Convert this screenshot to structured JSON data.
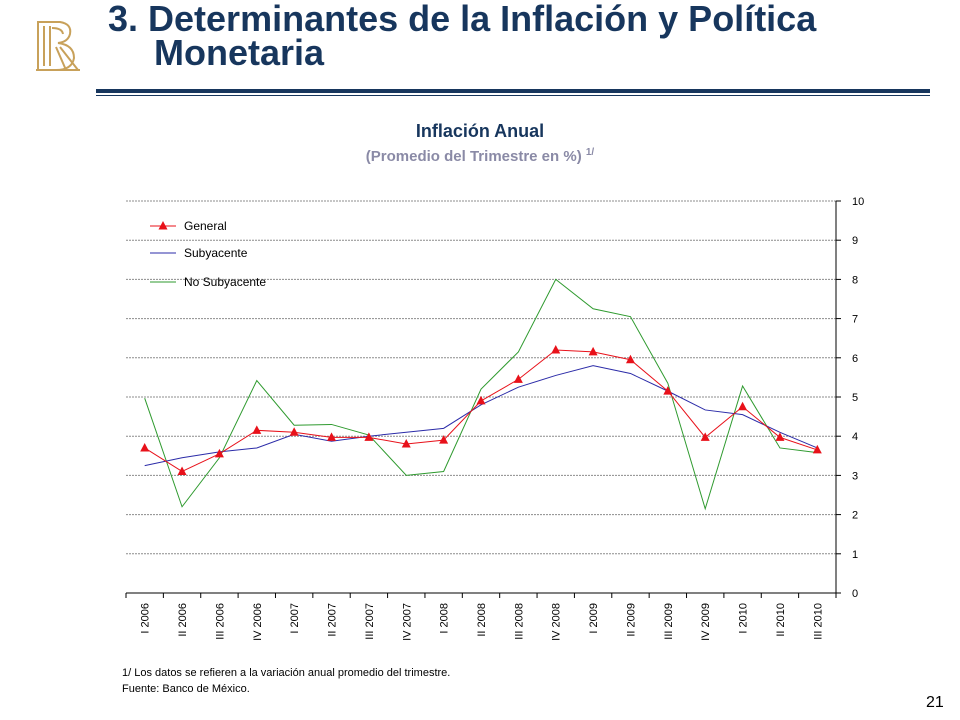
{
  "slide": {
    "title_line1": "3. Determinantes de la Inflación y Política",
    "title_line2": "Monetaria",
    "page_number": "21",
    "colors": {
      "title": "#17365d",
      "logo": "#c8a15a"
    }
  },
  "chart_data": {
    "type": "line",
    "title": "Inflación Anual",
    "subtitle": "(Promedio del Trimestre en %)",
    "subtitle_footnote_mark": "1/",
    "categories": [
      "I 2006",
      "II 2006",
      "III 2006",
      "IV 2006",
      "I 2007",
      "II 2007",
      "III 2007",
      "IV 2007",
      "I 2008",
      "II 2008",
      "III 2008",
      "IV 2008",
      "I 2009",
      "II 2009",
      "III 2009",
      "IV 2009",
      "I 2010",
      "II 2010",
      "III 2010"
    ],
    "ylim": [
      0,
      10
    ],
    "yticks": [
      0,
      1,
      2,
      3,
      4,
      5,
      6,
      7,
      8,
      9,
      10
    ],
    "y_axis_side": "right",
    "grid": "horizontal dashed",
    "legend_position": "top-left",
    "series": [
      {
        "name": "General",
        "color": "#e8111a",
        "marker": "triangle",
        "values": [
          3.7,
          3.1,
          3.55,
          4.15,
          4.1,
          3.97,
          3.97,
          3.8,
          3.9,
          4.9,
          5.45,
          6.2,
          6.15,
          5.95,
          5.15,
          3.97,
          4.75,
          3.97,
          3.65
        ]
      },
      {
        "name": "Subyacente",
        "color": "#2b2ba8",
        "marker": "none",
        "values": [
          3.25,
          3.45,
          3.6,
          3.7,
          4.05,
          3.87,
          4.0,
          4.1,
          4.2,
          4.8,
          5.25,
          5.55,
          5.8,
          5.6,
          5.15,
          4.67,
          4.55,
          4.1,
          3.7
        ]
      },
      {
        "name": "No Subyacente",
        "color": "#2e9a2e",
        "marker": "none",
        "values": [
          4.97,
          2.2,
          3.45,
          5.42,
          4.28,
          4.3,
          4.03,
          3.0,
          3.1,
          5.2,
          6.15,
          8.0,
          7.25,
          7.05,
          5.35,
          2.15,
          5.28,
          3.7,
          3.58
        ]
      }
    ]
  },
  "footnotes": {
    "note": "1/ Los datos se refieren a la variación anual promedio del trimestre.",
    "source": "Fuente: Banco de México."
  }
}
